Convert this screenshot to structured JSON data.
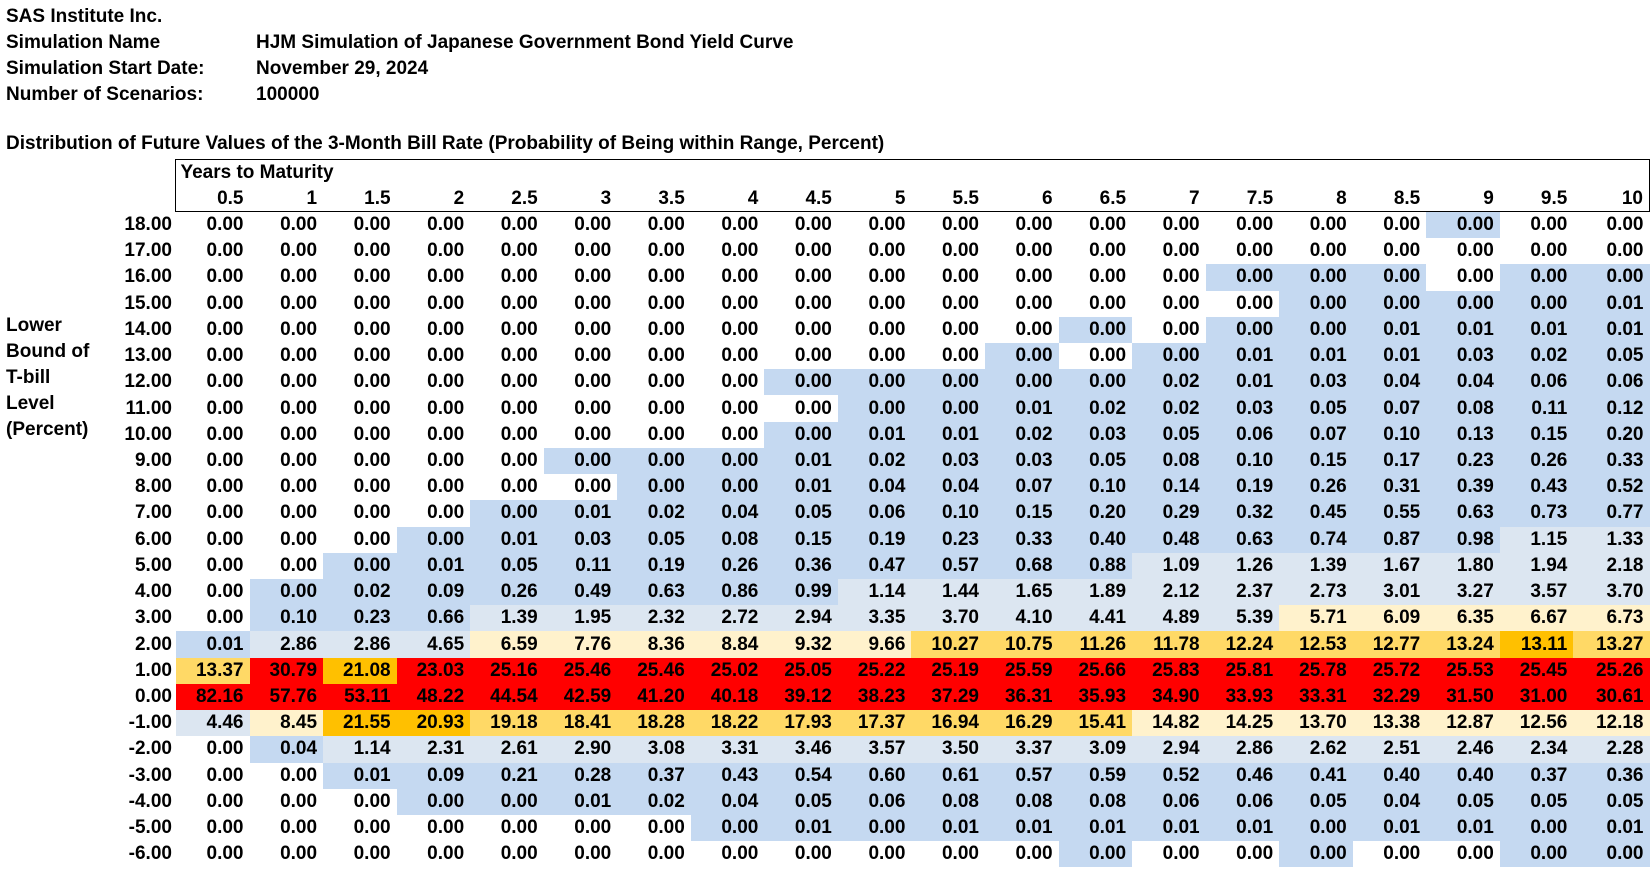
{
  "header": {
    "company": "SAS Institute Inc.",
    "rows": [
      {
        "label": "Simulation Name",
        "value": "HJM Simulation of Japanese Government Bond Yield Curve"
      },
      {
        "label": "Simulation Start Date:",
        "value": "November 29, 2024"
      },
      {
        "label": "Number of Scenarios:",
        "value": "100000"
      }
    ]
  },
  "table": {
    "title": "Distribution of Future Values of the 3-Month Bill Rate (Probability of Being within Range, Percent)",
    "col_axis_label": "Years to Maturity",
    "row_axis_label_lines": [
      "Lower",
      "Bound of",
      "T-bill",
      "Level",
      "(Percent)"
    ],
    "columns": [
      "0.5",
      "1",
      "1.5",
      "2",
      "2.5",
      "3",
      "3.5",
      "4",
      "4.5",
      "5",
      "5.5",
      "6",
      "6.5",
      "7",
      "7.5",
      "8",
      "8.5",
      "9",
      "9.5",
      "10"
    ],
    "colors": {
      "w": "#ffffff",
      "b": "#c5d9f1",
      "l": "#dce6f1",
      "y": "#fff2cc",
      "g": "#ffd966",
      "o": "#ffc000",
      "r": "#ff0000"
    },
    "rows": [
      {
        "lower": "18.00",
        "values": [
          "0.00",
          "0.00",
          "0.00",
          "0.00",
          "0.00",
          "0.00",
          "0.00",
          "0.00",
          "0.00",
          "0.00",
          "0.00",
          "0.00",
          "0.00",
          "0.00",
          "0.00",
          "0.00",
          "0.00",
          "0.00",
          "0.00",
          "0.00"
        ],
        "shades": "wwwwwwwwwwwwwwwwwbww"
      },
      {
        "lower": "17.00",
        "values": [
          "0.00",
          "0.00",
          "0.00",
          "0.00",
          "0.00",
          "0.00",
          "0.00",
          "0.00",
          "0.00",
          "0.00",
          "0.00",
          "0.00",
          "0.00",
          "0.00",
          "0.00",
          "0.00",
          "0.00",
          "0.00",
          "0.00",
          "0.00"
        ],
        "shades": "wwwwwwwwwwwwwwwwwwww"
      },
      {
        "lower": "16.00",
        "values": [
          "0.00",
          "0.00",
          "0.00",
          "0.00",
          "0.00",
          "0.00",
          "0.00",
          "0.00",
          "0.00",
          "0.00",
          "0.00",
          "0.00",
          "0.00",
          "0.00",
          "0.00",
          "0.00",
          "0.00",
          "0.00",
          "0.00",
          "0.00"
        ],
        "shades": "wwwwwwwwwwwwwwbbbwbb"
      },
      {
        "lower": "15.00",
        "values": [
          "0.00",
          "0.00",
          "0.00",
          "0.00",
          "0.00",
          "0.00",
          "0.00",
          "0.00",
          "0.00",
          "0.00",
          "0.00",
          "0.00",
          "0.00",
          "0.00",
          "0.00",
          "0.00",
          "0.00",
          "0.00",
          "0.00",
          "0.01"
        ],
        "shades": "wwwwwwwwwwwwwwwbbbbb"
      },
      {
        "lower": "14.00",
        "values": [
          "0.00",
          "0.00",
          "0.00",
          "0.00",
          "0.00",
          "0.00",
          "0.00",
          "0.00",
          "0.00",
          "0.00",
          "0.00",
          "0.00",
          "0.00",
          "0.00",
          "0.00",
          "0.00",
          "0.01",
          "0.01",
          "0.01",
          "0.01"
        ],
        "shades": "wwwwwwwwwwwwbwbbbbbb"
      },
      {
        "lower": "13.00",
        "values": [
          "0.00",
          "0.00",
          "0.00",
          "0.00",
          "0.00",
          "0.00",
          "0.00",
          "0.00",
          "0.00",
          "0.00",
          "0.00",
          "0.00",
          "0.00",
          "0.00",
          "0.01",
          "0.01",
          "0.01",
          "0.03",
          "0.02",
          "0.05"
        ],
        "shades": "wwwwwwwwwwwbwbbbbbbb"
      },
      {
        "lower": "12.00",
        "values": [
          "0.00",
          "0.00",
          "0.00",
          "0.00",
          "0.00",
          "0.00",
          "0.00",
          "0.00",
          "0.00",
          "0.00",
          "0.00",
          "0.00",
          "0.00",
          "0.02",
          "0.01",
          "0.03",
          "0.04",
          "0.04",
          "0.06",
          "0.06"
        ],
        "shades": "wwwwwwwwbbbbbbbbbbbb"
      },
      {
        "lower": "11.00",
        "values": [
          "0.00",
          "0.00",
          "0.00",
          "0.00",
          "0.00",
          "0.00",
          "0.00",
          "0.00",
          "0.00",
          "0.00",
          "0.00",
          "0.01",
          "0.02",
          "0.02",
          "0.03",
          "0.05",
          "0.07",
          "0.08",
          "0.11",
          "0.12"
        ],
        "shades": "wwwwwwwwwbbbbbbbbbbb"
      },
      {
        "lower": "10.00",
        "values": [
          "0.00",
          "0.00",
          "0.00",
          "0.00",
          "0.00",
          "0.00",
          "0.00",
          "0.00",
          "0.00",
          "0.01",
          "0.01",
          "0.02",
          "0.03",
          "0.05",
          "0.06",
          "0.07",
          "0.10",
          "0.13",
          "0.15",
          "0.20"
        ],
        "shades": "wwwwwwwwbbbbbbbbbbbb"
      },
      {
        "lower": "9.00",
        "values": [
          "0.00",
          "0.00",
          "0.00",
          "0.00",
          "0.00",
          "0.00",
          "0.00",
          "0.00",
          "0.01",
          "0.02",
          "0.03",
          "0.03",
          "0.05",
          "0.08",
          "0.10",
          "0.15",
          "0.17",
          "0.23",
          "0.26",
          "0.33"
        ],
        "shades": "wwwwwbbbbbbbbbbbbbbb"
      },
      {
        "lower": "8.00",
        "values": [
          "0.00",
          "0.00",
          "0.00",
          "0.00",
          "0.00",
          "0.00",
          "0.00",
          "0.00",
          "0.01",
          "0.04",
          "0.04",
          "0.07",
          "0.10",
          "0.14",
          "0.19",
          "0.26",
          "0.31",
          "0.39",
          "0.43",
          "0.52"
        ],
        "shades": "wwwwwwbbbbbbbbbbbbbb"
      },
      {
        "lower": "7.00",
        "values": [
          "0.00",
          "0.00",
          "0.00",
          "0.00",
          "0.00",
          "0.01",
          "0.02",
          "0.04",
          "0.05",
          "0.06",
          "0.10",
          "0.15",
          "0.20",
          "0.29",
          "0.32",
          "0.45",
          "0.55",
          "0.63",
          "0.73",
          "0.77"
        ],
        "shades": "wwwwbbbbbbbbbbbbbbbb"
      },
      {
        "lower": "6.00",
        "values": [
          "0.00",
          "0.00",
          "0.00",
          "0.00",
          "0.01",
          "0.03",
          "0.05",
          "0.08",
          "0.15",
          "0.19",
          "0.23",
          "0.33",
          "0.40",
          "0.48",
          "0.63",
          "0.74",
          "0.87",
          "0.98",
          "1.15",
          "1.33"
        ],
        "shades": "wwwbbbbbbbbbbbbbbbll"
      },
      {
        "lower": "5.00",
        "values": [
          "0.00",
          "0.00",
          "0.00",
          "0.01",
          "0.05",
          "0.11",
          "0.19",
          "0.26",
          "0.36",
          "0.47",
          "0.57",
          "0.68",
          "0.88",
          "1.09",
          "1.26",
          "1.39",
          "1.67",
          "1.80",
          "1.94",
          "2.18"
        ],
        "shades": "wwbbbbbbbbbbblllllll"
      },
      {
        "lower": "4.00",
        "values": [
          "0.00",
          "0.00",
          "0.02",
          "0.09",
          "0.26",
          "0.49",
          "0.63",
          "0.86",
          "0.99",
          "1.14",
          "1.44",
          "1.65",
          "1.89",
          "2.12",
          "2.37",
          "2.73",
          "3.01",
          "3.27",
          "3.57",
          "3.70"
        ],
        "shades": "wbbbbbbbblllllllllll"
      },
      {
        "lower": "3.00",
        "values": [
          "0.00",
          "0.10",
          "0.23",
          "0.66",
          "1.39",
          "1.95",
          "2.32",
          "2.72",
          "2.94",
          "3.35",
          "3.70",
          "4.10",
          "4.41",
          "4.89",
          "5.39",
          "5.71",
          "6.09",
          "6.35",
          "6.67",
          "6.73"
        ],
        "shades": "wbbblllllllllllyyyyy"
      },
      {
        "lower": "2.00",
        "values": [
          "0.01",
          "2.86",
          "2.86",
          "4.65",
          "6.59",
          "7.76",
          "8.36",
          "8.84",
          "9.32",
          "9.66",
          "10.27",
          "10.75",
          "11.26",
          "11.78",
          "12.24",
          "12.53",
          "12.77",
          "13.24",
          "13.11",
          "13.27"
        ],
        "shades": "blllyyyyyyggggggggog"
      },
      {
        "lower": "1.00",
        "values": [
          "13.37",
          "30.79",
          "21.08",
          "23.03",
          "25.16",
          "25.46",
          "25.46",
          "25.02",
          "25.05",
          "25.22",
          "25.19",
          "25.59",
          "25.66",
          "25.83",
          "25.81",
          "25.78",
          "25.72",
          "25.53",
          "25.45",
          "25.26"
        ],
        "shades": "grorrrrrrrrrrrrrrrrr"
      },
      {
        "lower": "0.00",
        "values": [
          "82.16",
          "57.76",
          "53.11",
          "48.22",
          "44.54",
          "42.59",
          "41.20",
          "40.18",
          "39.12",
          "38.23",
          "37.29",
          "36.31",
          "35.93",
          "34.90",
          "33.93",
          "33.31",
          "32.29",
          "31.50",
          "31.00",
          "30.61"
        ],
        "shades": "rrrrrrrrrrrrrrrrrrrr"
      },
      {
        "lower": "-1.00",
        "values": [
          "4.46",
          "8.45",
          "21.55",
          "20.93",
          "19.18",
          "18.41",
          "18.28",
          "18.22",
          "17.93",
          "17.37",
          "16.94",
          "16.29",
          "15.41",
          "14.82",
          "14.25",
          "13.70",
          "13.38",
          "12.87",
          "12.56",
          "12.18"
        ],
        "shades": "lyoogggggggggyyyyyyy"
      },
      {
        "lower": "-2.00",
        "values": [
          "0.00",
          "0.04",
          "1.14",
          "2.31",
          "2.61",
          "2.90",
          "3.08",
          "3.31",
          "3.46",
          "3.57",
          "3.50",
          "3.37",
          "3.09",
          "2.94",
          "2.86",
          "2.62",
          "2.51",
          "2.46",
          "2.34",
          "2.28"
        ],
        "shades": "wbllllllllllllllllll"
      },
      {
        "lower": "-3.00",
        "values": [
          "0.00",
          "0.00",
          "0.01",
          "0.09",
          "0.21",
          "0.28",
          "0.37",
          "0.43",
          "0.54",
          "0.60",
          "0.61",
          "0.57",
          "0.59",
          "0.52",
          "0.46",
          "0.41",
          "0.40",
          "0.40",
          "0.37",
          "0.36"
        ],
        "shades": "wwbbbbbbbbbbbbbbbbbb"
      },
      {
        "lower": "-4.00",
        "values": [
          "0.00",
          "0.00",
          "0.00",
          "0.00",
          "0.00",
          "0.01",
          "0.02",
          "0.04",
          "0.05",
          "0.06",
          "0.08",
          "0.08",
          "0.08",
          "0.06",
          "0.06",
          "0.05",
          "0.04",
          "0.05",
          "0.05",
          "0.05"
        ],
        "shades": "wwwbbbbbbbbbbbbbbbbb"
      },
      {
        "lower": "-5.00",
        "values": [
          "0.00",
          "0.00",
          "0.00",
          "0.00",
          "0.00",
          "0.00",
          "0.00",
          "0.00",
          "0.01",
          "0.00",
          "0.01",
          "0.01",
          "0.01",
          "0.01",
          "0.01",
          "0.00",
          "0.01",
          "0.01",
          "0.00",
          "0.01"
        ],
        "shades": "wwwwwwwbbbbbbbbbbbbb"
      },
      {
        "lower": "-6.00",
        "values": [
          "0.00",
          "0.00",
          "0.00",
          "0.00",
          "0.00",
          "0.00",
          "0.00",
          "0.00",
          "0.00",
          "0.00",
          "0.00",
          "0.00",
          "0.00",
          "0.00",
          "0.00",
          "0.00",
          "0.00",
          "0.00",
          "0.00",
          "0.00"
        ],
        "shades": "wwwwwwwwwwwwbwwbwwbb"
      }
    ]
  }
}
